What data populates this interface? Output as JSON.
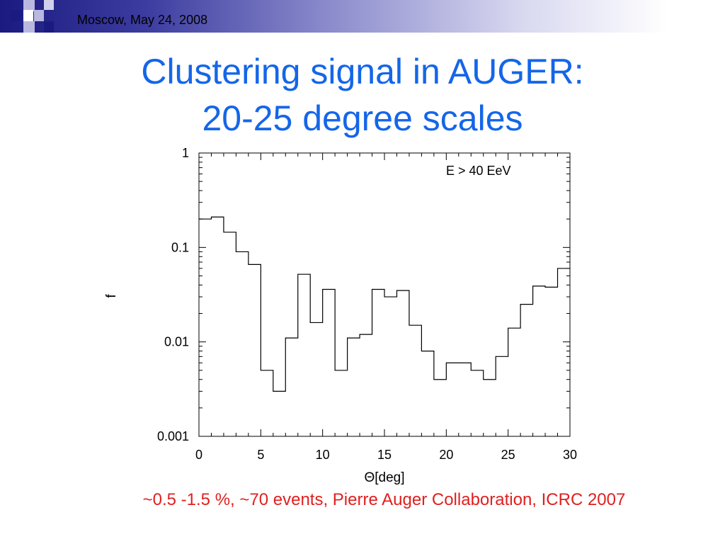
{
  "header": {
    "date_text": "Moscow, May 24, 2008"
  },
  "slide": {
    "title_line1": "Clustering signal in AUGER:",
    "title_line2": "20-25 degree scales",
    "caption": "~0.5 -1.5 %, ~70 events, Pierre Auger Collaboration, ICRC 2007"
  },
  "colors": {
    "title": "#1466e8",
    "caption": "#e02020",
    "header_dark": "#1a1a80"
  },
  "chart_data": {
    "type": "line",
    "style": "step-histogram",
    "xlabel": "Θ[deg]",
    "ylabel": "f",
    "annotation": "E > 40 EeV",
    "xlim": [
      0,
      30
    ],
    "ylim": [
      0.001,
      1
    ],
    "yscale": "log",
    "x_ticks": [
      0,
      5,
      10,
      15,
      20,
      25,
      30
    ],
    "y_ticks": [
      0.001,
      0.01,
      0.1,
      1
    ],
    "y_tick_labels": [
      "0.001",
      "0.01",
      "0.1",
      "1"
    ],
    "bin_edges": [
      0,
      1,
      2,
      3,
      4,
      5,
      6,
      7,
      8,
      9,
      10,
      11,
      12,
      13,
      14,
      15,
      16,
      17,
      18,
      19,
      20,
      21,
      22,
      23,
      24,
      25,
      26,
      27,
      28,
      29,
      30
    ],
    "values": [
      0.2,
      0.21,
      0.145,
      0.09,
      0.066,
      0.005,
      0.003,
      0.011,
      0.052,
      0.016,
      0.036,
      0.005,
      0.011,
      0.012,
      0.036,
      0.03,
      0.035,
      0.015,
      0.008,
      0.004,
      0.006,
      0.006,
      0.005,
      0.004,
      0.007,
      0.014,
      0.025,
      0.039,
      0.038,
      0.06
    ],
    "grid": false
  }
}
